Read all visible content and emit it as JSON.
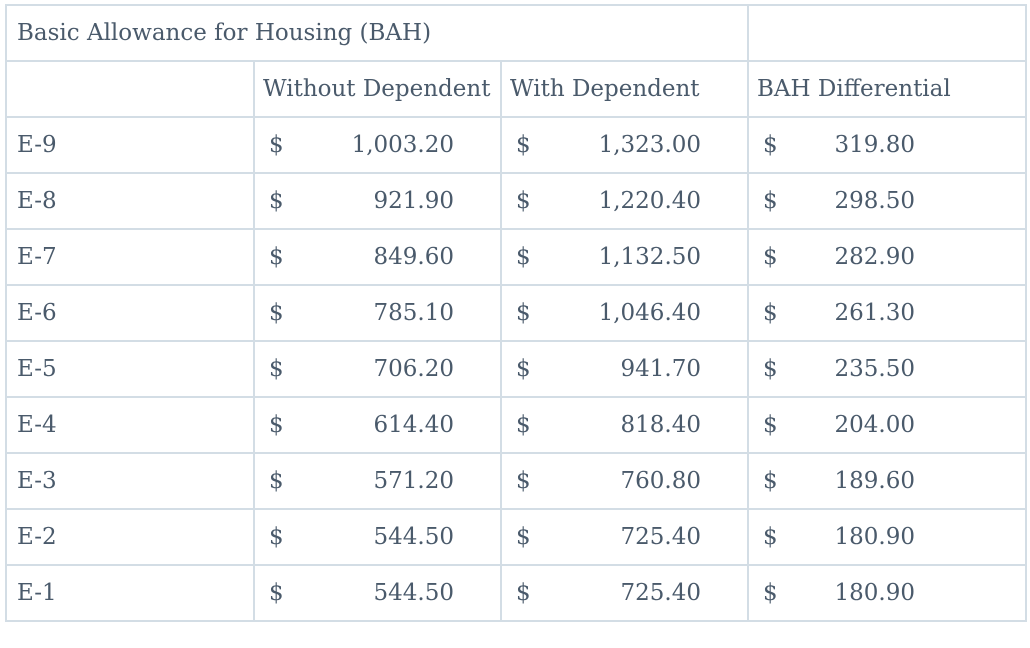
{
  "table": {
    "title": "Basic Allowance for Housing (BAH)",
    "headers": [
      "",
      "Without Dependent",
      "With Dependent",
      "BAH Differential"
    ],
    "currency_symbol": "$",
    "rows": [
      {
        "grade": "E-9",
        "without": "1,003.20",
        "with": "1,323.00",
        "diff": "319.80"
      },
      {
        "grade": "E-8",
        "without": "921.90",
        "with": "1,220.40",
        "diff": "298.50"
      },
      {
        "grade": "E-7",
        "without": "849.60",
        "with": "1,132.50",
        "diff": "282.90"
      },
      {
        "grade": "E-6",
        "without": "785.10",
        "with": "1,046.40",
        "diff": "261.30"
      },
      {
        "grade": "E-5",
        "without": "706.20",
        "with": "941.70",
        "diff": "235.50"
      },
      {
        "grade": "E-4",
        "without": "614.40",
        "with": "818.40",
        "diff": "204.00"
      },
      {
        "grade": "E-3",
        "without": "571.20",
        "with": "760.80",
        "diff": "189.60"
      },
      {
        "grade": "E-2",
        "without": "544.50",
        "with": "725.40",
        "diff": "180.90"
      },
      {
        "grade": "E-1",
        "without": "544.50",
        "with": "725.40",
        "diff": "180.90"
      }
    ]
  },
  "colors": {
    "text": "#4a5a6b",
    "border": "#d3dde5",
    "background": "#ffffff"
  }
}
